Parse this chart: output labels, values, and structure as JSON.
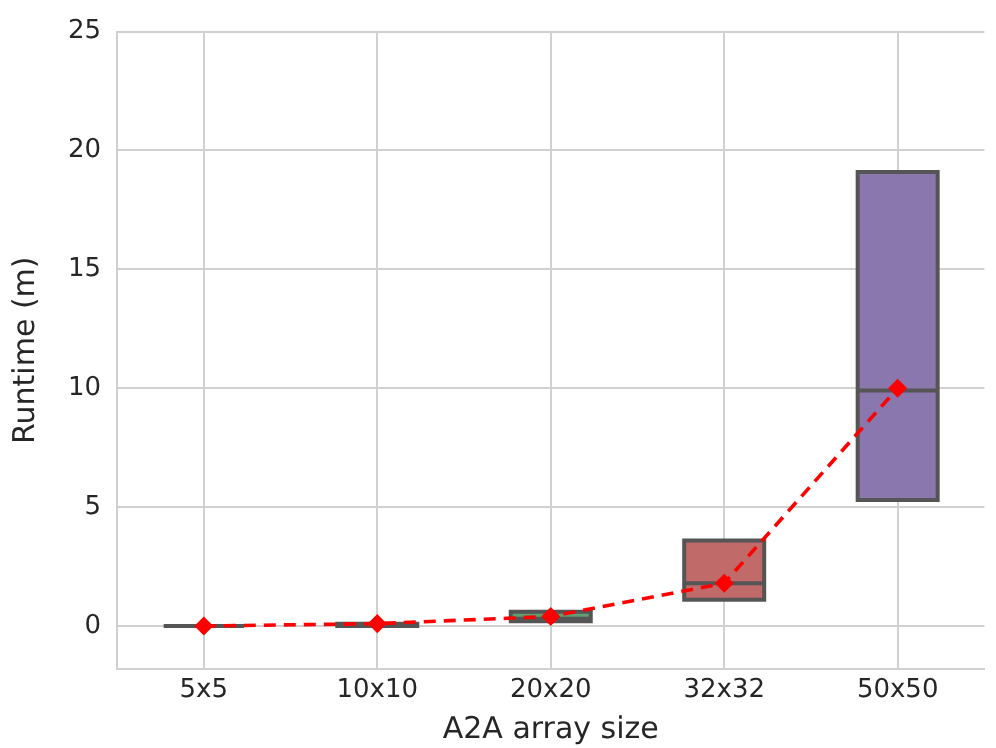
{
  "chart_data": {
    "type": "box",
    "xlabel": "A2A array size",
    "ylabel": "Runtime (m)",
    "categories": [
      "5x5",
      "10x10",
      "20x20",
      "32x32",
      "50x50"
    ],
    "ylim": [
      -1.8,
      25
    ],
    "yticks": [
      0,
      5,
      10,
      15,
      20,
      25
    ],
    "grid": true,
    "series": [
      {
        "type": "box",
        "colors": [
          "#555555",
          "#cc8963",
          "#5f9e6e",
          "#c06a6a",
          "#8a77ad"
        ],
        "boxes": [
          {
            "low": 0,
            "q1": 0,
            "median": 0,
            "q3": 0,
            "high": 0
          },
          {
            "low": 0,
            "q1": 0,
            "median": 0,
            "q3": 0.1,
            "high": 0.1
          },
          {
            "low": 0.2,
            "q1": 0.2,
            "median": 0.3,
            "q3": 0.6,
            "high": 0.6
          },
          {
            "low": 1.1,
            "q1": 1.1,
            "median": 1.8,
            "q3": 3.6,
            "high": 3.6
          },
          {
            "low": 5.3,
            "q1": 5.3,
            "median": 9.9,
            "q3": 19.1,
            "high": 19.1
          }
        ]
      },
      {
        "type": "line",
        "values": [
          0,
          0.1,
          0.4,
          1.8,
          10
        ],
        "color": "#ff0000",
        "marker": "diamond",
        "line_style": "dashed"
      }
    ]
  }
}
